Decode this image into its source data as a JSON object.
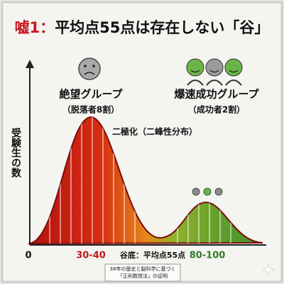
{
  "title": {
    "prefix": "嘘1：",
    "main": "平均点55点は存在しない「谷」"
  },
  "y_axis_label": "受験生の数",
  "groups": [
    {
      "label": "絶望グループ",
      "note": "（脱落者8割）"
    },
    {
      "label": "爆速成功グループ",
      "note": "（成功者2割）"
    }
  ],
  "annotation": "二極化（二峰性分布）",
  "x_labels": {
    "origin": "0",
    "left_peak": "30-40",
    "valley": "谷底：平均点55点",
    "right_peak": "80-100"
  },
  "footer": [
    "38年の歴史と脳科学に基づく",
    "「正則数授法」の証明"
  ]
}
